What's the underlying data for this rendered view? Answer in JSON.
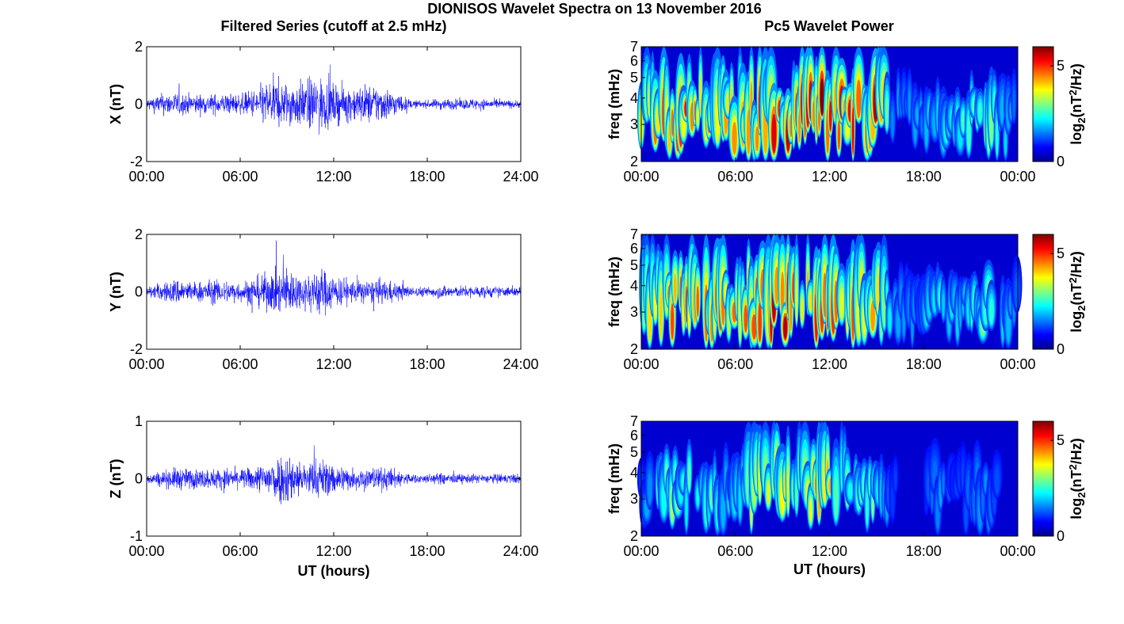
{
  "figure_title": "DIONISOS Wavelet Spectra on 13 November 2016",
  "left_column_title": "Filtered Series (cutoff at 2.5 mHz)",
  "right_column_title": "Pc5 Wavelet Power",
  "colors": {
    "trace": "#0000ff",
    "axes": "#000000",
    "background": "#ffffff",
    "colormap": "jet"
  },
  "chart_data": [
    {
      "type": "line",
      "component": "X",
      "ylabel": "X (nT)",
      "xlabel": "",
      "ylim": [
        -2,
        2
      ],
      "yticks": [
        "2",
        "0",
        "-2"
      ],
      "xticks": [
        "00:00",
        "06:00",
        "12:00",
        "18:00",
        "24:00"
      ],
      "xlim_hours": [
        0,
        24
      ],
      "envelope": {
        "hours": [
          0,
          1,
          2,
          3,
          4,
          5,
          6,
          7,
          8,
          9,
          10,
          11,
          12,
          13,
          14,
          15,
          16,
          17,
          18,
          19,
          20,
          21,
          22,
          23,
          24
        ],
        "amplitude_nT": [
          0.3,
          0.55,
          0.6,
          0.5,
          0.5,
          0.55,
          0.5,
          0.8,
          1.3,
          1.1,
          1.2,
          1.5,
          1.0,
          0.9,
          1.0,
          1.0,
          0.6,
          0.2,
          0.2,
          0.3,
          0.25,
          0.3,
          0.25,
          0.2,
          0.2
        ]
      }
    },
    {
      "type": "heatmap",
      "component": "X",
      "ylabel": "freq (mHz)",
      "xlabel": "",
      "yticks": [
        "2",
        "3",
        "4",
        "5",
        "6",
        "7"
      ],
      "ylim_mHz": [
        2,
        7
      ],
      "yscale": "log",
      "xticks": [
        "00:00",
        "06:00",
        "12:00",
        "18:00",
        "00:00"
      ],
      "colorbar_label": "log2(nT2/Hz)",
      "colorbar_ticks": [
        "5",
        "0"
      ],
      "clim": [
        0,
        6
      ],
      "activity": {
        "hours": [
          0,
          1,
          2,
          3,
          4,
          5,
          6,
          7,
          8,
          9,
          10,
          11,
          12,
          13,
          14,
          15,
          16,
          17,
          18,
          19,
          20,
          21,
          22,
          23,
          24
        ],
        "power_peak": [
          3.5,
          4.5,
          5.0,
          5.2,
          5.0,
          5.0,
          4.8,
          5.2,
          5.5,
          5.8,
          5.2,
          6.0,
          6.0,
          5.5,
          5.5,
          6.0,
          1.5,
          1.0,
          1.5,
          2.0,
          1.8,
          2.5,
          3.5,
          2.0,
          1.0
        ]
      }
    },
    {
      "type": "line",
      "component": "Y",
      "ylabel": "Y (nT)",
      "xlabel": "",
      "ylim": [
        -2,
        2
      ],
      "yticks": [
        "2",
        "0",
        "-2"
      ],
      "xticks": [
        "00:00",
        "06:00",
        "12:00",
        "18:00",
        "24:00"
      ],
      "xlim_hours": [
        0,
        24
      ],
      "envelope": {
        "hours": [
          0,
          1,
          2,
          3,
          4,
          5,
          6,
          7,
          8,
          9,
          10,
          11,
          12,
          13,
          14,
          15,
          16,
          17,
          18,
          19,
          20,
          21,
          22,
          23,
          24
        ],
        "amplitude_nT": [
          0.3,
          0.45,
          0.7,
          0.5,
          0.6,
          0.6,
          0.5,
          0.8,
          1.0,
          1.3,
          0.8,
          1.3,
          0.9,
          0.6,
          0.6,
          0.6,
          0.5,
          0.25,
          0.25,
          0.35,
          0.3,
          0.3,
          0.3,
          0.25,
          0.25
        ]
      }
    },
    {
      "type": "heatmap",
      "component": "Y",
      "ylabel": "freq (mHz)",
      "xlabel": "",
      "yticks": [
        "2",
        "3",
        "4",
        "5",
        "6",
        "7"
      ],
      "ylim_mHz": [
        2,
        7
      ],
      "yscale": "log",
      "xticks": [
        "00:00",
        "06:00",
        "12:00",
        "18:00",
        "00:00"
      ],
      "colorbar_label": "log2(nT2/Hz)",
      "colorbar_ticks": [
        "5",
        "0"
      ],
      "clim": [
        0,
        6
      ],
      "activity": {
        "hours": [
          0,
          1,
          2,
          3,
          4,
          5,
          6,
          7,
          8,
          9,
          10,
          11,
          12,
          13,
          14,
          15,
          16,
          17,
          18,
          19,
          20,
          21,
          22,
          23,
          24
        ],
        "power_peak": [
          3.5,
          4.5,
          5.0,
          5.0,
          5.0,
          4.8,
          4.5,
          5.2,
          5.8,
          6.0,
          5.0,
          6.0,
          5.5,
          5.0,
          5.0,
          5.2,
          1.5,
          1.0,
          1.5,
          2.0,
          1.8,
          2.2,
          3.0,
          2.0,
          1.0
        ]
      }
    },
    {
      "type": "line",
      "component": "Z",
      "ylabel": "Z (nT)",
      "xlabel": "UT (hours)",
      "ylim": [
        -1,
        1
      ],
      "yticks": [
        "1",
        "0",
        "-1"
      ],
      "xticks": [
        "00:00",
        "06:00",
        "12:00",
        "18:00",
        "24:00"
      ],
      "xlim_hours": [
        0,
        24
      ],
      "envelope": {
        "hours": [
          0,
          1,
          2,
          3,
          4,
          5,
          6,
          7,
          8,
          9,
          10,
          11,
          12,
          13,
          14,
          15,
          16,
          17,
          18,
          19,
          20,
          21,
          22,
          23,
          24
        ],
        "amplitude_nT": [
          0.12,
          0.2,
          0.3,
          0.25,
          0.25,
          0.28,
          0.25,
          0.3,
          0.55,
          0.7,
          0.4,
          0.55,
          0.4,
          0.3,
          0.3,
          0.3,
          0.25,
          0.12,
          0.12,
          0.15,
          0.12,
          0.12,
          0.12,
          0.12,
          0.12
        ]
      }
    },
    {
      "type": "heatmap",
      "component": "Z",
      "ylabel": "freq (mHz)",
      "xlabel": "UT (hours)",
      "yticks": [
        "2",
        "3",
        "4",
        "5",
        "6",
        "7"
      ],
      "ylim_mHz": [
        2,
        7
      ],
      "yscale": "log",
      "xticks": [
        "00:00",
        "06:00",
        "12:00",
        "18:00",
        "00:00"
      ],
      "colorbar_label": "log2(nT2/Hz)",
      "colorbar_ticks": [
        "5",
        "0"
      ],
      "clim": [
        0,
        6
      ],
      "activity": {
        "hours": [
          0,
          1,
          2,
          3,
          4,
          5,
          6,
          7,
          8,
          9,
          10,
          11,
          12,
          13,
          14,
          15,
          16,
          17,
          18,
          19,
          20,
          21,
          22,
          23,
          24
        ],
        "power_peak": [
          0.5,
          2.5,
          3.0,
          2.5,
          2.8,
          2.0,
          1.5,
          3.5,
          4.0,
          4.5,
          3.0,
          5.0,
          4.0,
          3.0,
          3.0,
          3.0,
          0.5,
          0.2,
          0.2,
          1.5,
          0.5,
          1.0,
          1.2,
          0.3,
          0.2
        ]
      }
    }
  ]
}
